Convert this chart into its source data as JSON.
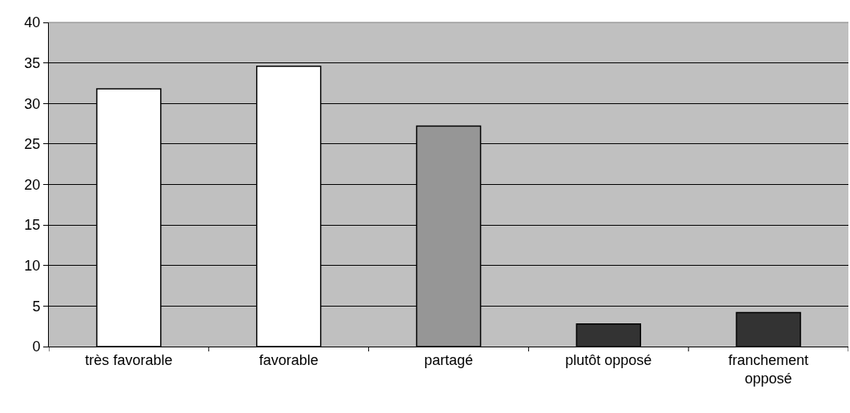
{
  "chart_data": {
    "type": "bar",
    "categories": [
      "très favorable",
      "favorable",
      "partagé",
      "plutôt opposé",
      "franchement opposé"
    ],
    "values": [
      31.8,
      34.6,
      27.2,
      2.8,
      4.2
    ],
    "colors": [
      "#ffffff",
      "#ffffff",
      "#969696",
      "#333333",
      "#333333"
    ],
    "ylim": [
      0,
      40
    ],
    "yticks": [
      0,
      5,
      10,
      15,
      20,
      25,
      30,
      35,
      40
    ],
    "grid": "y"
  }
}
